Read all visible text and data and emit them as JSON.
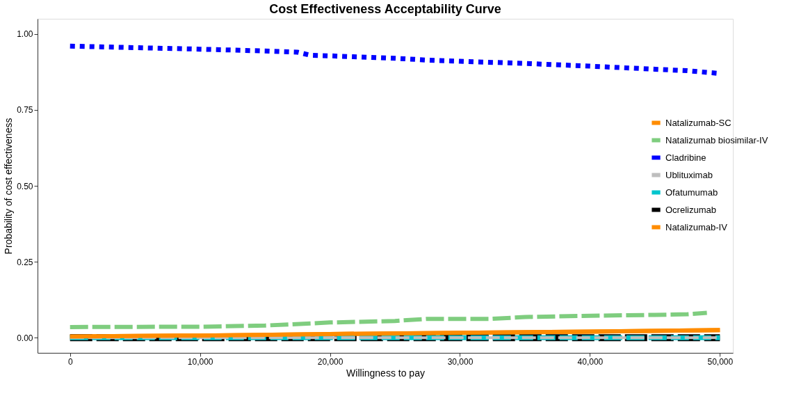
{
  "chart_data": {
    "type": "line",
    "title": "Cost Effectiveness Acceptability Curve",
    "xlabel": "Willingness to pay",
    "ylabel": "Probability of cost effectiveness",
    "xlim": [
      -2500,
      51000
    ],
    "ylim": [
      -0.05,
      1.05
    ],
    "xticks": [
      {
        "value": 0,
        "label": "0"
      },
      {
        "value": 10000,
        "label": "10,000"
      },
      {
        "value": 20000,
        "label": "20,000"
      },
      {
        "value": 30000,
        "label": "30,000"
      },
      {
        "value": 40000,
        "label": "40,000"
      },
      {
        "value": 50000,
        "label": "50,000"
      }
    ],
    "yticks": [
      {
        "value": 0,
        "label": "0.00"
      },
      {
        "value": 0.25,
        "label": "0.25"
      },
      {
        "value": 0.5,
        "label": "0.50"
      },
      {
        "value": 0.75,
        "label": "0.75"
      },
      {
        "value": 1,
        "label": "1.00"
      }
    ],
    "grid": false,
    "legend": "right",
    "marker": "none",
    "series": [
      {
        "name": "Natalizumab-SC",
        "color": "#ff8c00",
        "line_style": "solid",
        "x": [
          0,
          10000,
          20000,
          30000,
          40000,
          50000
        ],
        "values": [
          0.004,
          0.007,
          0.012,
          0.016,
          0.02,
          0.025
        ]
      },
      {
        "name": "Natalizumab biosimilar-IV",
        "color": "#7fcd7f",
        "line_style": "dashed",
        "x": [
          0,
          10000,
          15000,
          20000,
          25000,
          27500,
          32500,
          35000,
          40000,
          45000,
          47500,
          49000
        ],
        "values": [
          0.035,
          0.036,
          0.04,
          0.05,
          0.055,
          0.062,
          0.062,
          0.068,
          0.072,
          0.075,
          0.077,
          0.082
        ]
      },
      {
        "name": "Cladribine",
        "color": "#0000ff",
        "line_style": "dotted",
        "x": [
          0,
          5000,
          10000,
          15000,
          17500,
          18500,
          20000,
          25000,
          27500,
          30000,
          35000,
          40000,
          45000,
          47500,
          50000
        ],
        "values": [
          0.96,
          0.955,
          0.95,
          0.944,
          0.94,
          0.93,
          0.928,
          0.92,
          0.914,
          0.91,
          0.903,
          0.894,
          0.884,
          0.879,
          0.87
        ]
      },
      {
        "name": "Ublituximab",
        "color": "#bebebe",
        "line_style": "dashed",
        "x": [
          0,
          50000
        ],
        "values": [
          0,
          0
        ]
      },
      {
        "name": "Ofatumumab",
        "color": "#00c5cd",
        "line_style": "dashed",
        "x": [
          0,
          50000
        ],
        "values": [
          0,
          0
        ]
      },
      {
        "name": "Ocrelizumab",
        "color": "#000000",
        "line_style": "dashed",
        "x": [
          0,
          50000
        ],
        "values": [
          0,
          0
        ]
      },
      {
        "name": "Natalizumab-IV",
        "color": "#ff8c00",
        "line_style": "solid",
        "x": [
          0,
          10000,
          20000,
          30000,
          40000,
          50000
        ],
        "values": [
          0.004,
          0.007,
          0.012,
          0.016,
          0.02,
          0.025
        ]
      }
    ]
  }
}
